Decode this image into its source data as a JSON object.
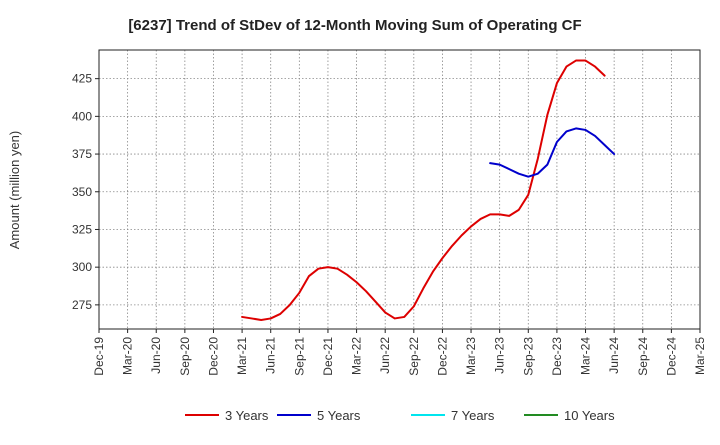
{
  "chart_data": {
    "type": "line",
    "title": "[6237]  Trend of StDev of 12-Month Moving Sum of Operating CF",
    "xlabel": "",
    "ylabel": "Amount (million yen)",
    "ylim": [
      259,
      444
    ],
    "yticks": [
      275,
      300,
      325,
      350,
      375,
      400,
      425
    ],
    "x_tick_labels": [
      "Dec-19",
      "Mar-20",
      "Jun-20",
      "Sep-20",
      "Dec-20",
      "Mar-21",
      "Jun-21",
      "Sep-21",
      "Dec-21",
      "Mar-22",
      "Jun-22",
      "Sep-22",
      "Dec-22",
      "Mar-23",
      "Jun-23",
      "Sep-23",
      "Dec-23",
      "Mar-24",
      "Jun-24",
      "Sep-24",
      "Dec-24",
      "Mar-25"
    ],
    "grid": true,
    "legend_position": "bottom",
    "series": [
      {
        "name": "3 Years",
        "color": "#dd0000",
        "start_index": 15,
        "values": [
          267,
          266,
          265,
          266,
          269,
          275,
          283,
          294,
          299,
          300,
          299,
          295,
          290,
          284,
          277,
          270,
          266,
          267,
          274,
          286,
          297,
          306,
          314,
          321,
          327,
          332,
          335,
          335,
          334,
          338,
          348,
          372,
          401,
          422,
          433,
          437,
          437,
          433,
          427
        ]
      },
      {
        "name": "5 Years",
        "color": "#0000cc",
        "start_index": 41,
        "values": [
          369,
          368,
          365,
          362,
          360,
          362,
          368,
          383,
          390,
          392,
          391,
          387,
          381,
          375
        ]
      },
      {
        "name": "7 Years",
        "color": "#00e5ee",
        "start_index": null,
        "values": []
      },
      {
        "name": "10 Years",
        "color": "#228b22",
        "start_index": null,
        "values": []
      }
    ]
  }
}
